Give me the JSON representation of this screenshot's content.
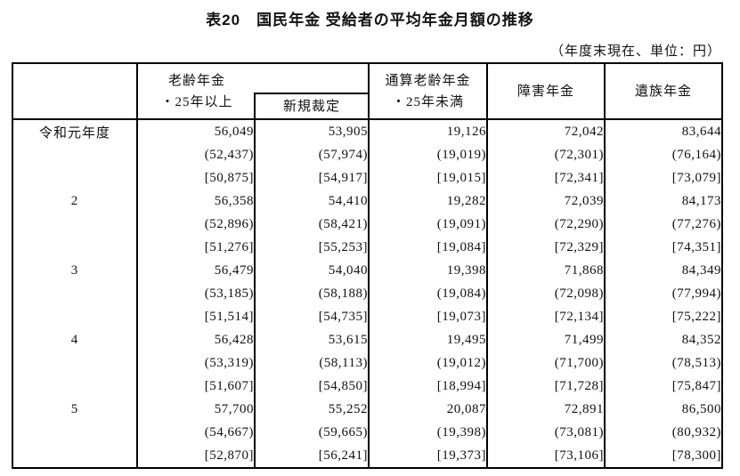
{
  "title": "表20　国民年金 受給者の平均年金月額の推移",
  "note": "（年度末現在、単位：円）",
  "table": {
    "headers": {
      "old_age_line1": "老齢年金",
      "old_age_line2": "・25年以上",
      "newly_awarded": "新規裁定",
      "total_old_age_line1": "通算老齢年金",
      "total_old_age_line2": "・25年未満",
      "disability": "障害年金",
      "survivor": "遺族年金"
    },
    "rows": [
      {
        "year": "令和元年度",
        "values": [
          [
            "56,049",
            "(52,437)",
            "[50,875]"
          ],
          [
            "53,905",
            "(57,974)",
            "[54,917]"
          ],
          [
            "19,126",
            "(19,019)",
            "[19,015]"
          ],
          [
            "72,042",
            "(72,301)",
            "[72,341]"
          ],
          [
            "83,644",
            "(76,164)",
            "[73,079]"
          ]
        ]
      },
      {
        "year": "2",
        "values": [
          [
            "56,358",
            "(52,896)",
            "[51,276]"
          ],
          [
            "54,410",
            "(58,421)",
            "[55,253]"
          ],
          [
            "19,282",
            "(19,091)",
            "[19,084]"
          ],
          [
            "72,039",
            "(72,290)",
            "[72,329]"
          ],
          [
            "84,173",
            "(77,276)",
            "[74,351]"
          ]
        ]
      },
      {
        "year": "3",
        "values": [
          [
            "56,479",
            "(53,185)",
            "[51,514]"
          ],
          [
            "54,040",
            "(58,188)",
            "[54,735]"
          ],
          [
            "19,398",
            "(19,084)",
            "[19,073]"
          ],
          [
            "71,868",
            "(72,098)",
            "[72,134]"
          ],
          [
            "84,349",
            "(77,994)",
            "[75,222]"
          ]
        ]
      },
      {
        "year": "4",
        "values": [
          [
            "56,428",
            "(53,319)",
            "[51,607]"
          ],
          [
            "53,615",
            "(58,113)",
            "[54,850]"
          ],
          [
            "19,495",
            "(19,012)",
            "[18,994]"
          ],
          [
            "71,499",
            "(71,700)",
            "[71,728]"
          ],
          [
            "84,352",
            "(78,513)",
            "[75,847]"
          ]
        ]
      },
      {
        "year": "5",
        "values": [
          [
            "57,700",
            "(54,667)",
            "[52,870]"
          ],
          [
            "55,252",
            "(59,665)",
            "[56,241]"
          ],
          [
            "20,087",
            "(19,398)",
            "[19,373]"
          ],
          [
            "72,891",
            "(73,081)",
            "[73,106]"
          ],
          [
            "86,500",
            "(80,932)",
            "[78,300]"
          ]
        ]
      }
    ]
  }
}
